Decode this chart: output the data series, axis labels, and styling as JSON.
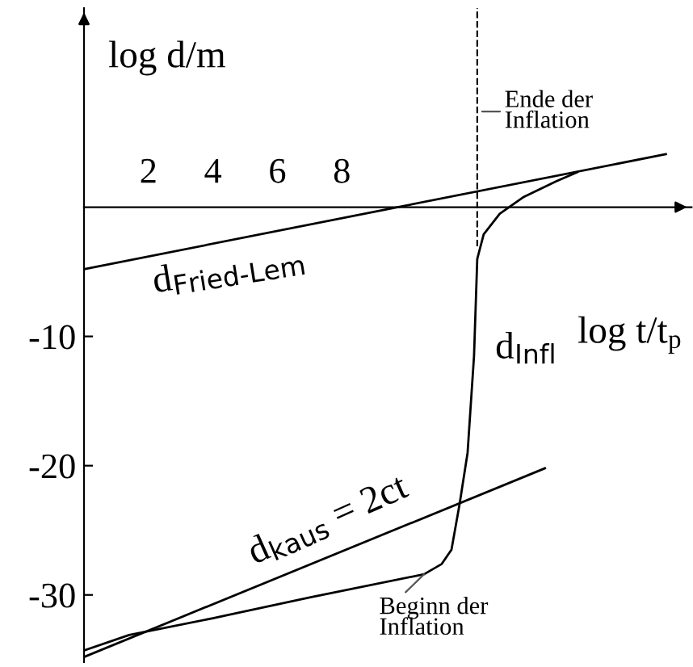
{
  "chart_data": {
    "type": "line",
    "xlabel": "log t/t$_{p}$",
    "ylabel": "log d/m",
    "xlim": [
      0,
      18.85
    ],
    "ylim": [
      -35.2,
      15.4
    ],
    "xticks": [
      2,
      4,
      6,
      8
    ],
    "yticks": [
      {
        "value": -10,
        "label": "-10"
      },
      {
        "value": -20,
        "label": "-20"
      },
      {
        "value": -30,
        "label": "-30"
      }
    ],
    "grid": false,
    "line_style": "solid",
    "marker": "none",
    "series": [
      {
        "name": "d$_{Fried-Lem}$",
        "color": "#000000",
        "x": [
          0,
          18.05
        ],
        "values": [
          -4.8,
          4.1
        ]
      },
      {
        "name": "d$_{Infl}$",
        "color": "#000000",
        "x": [
          0,
          1.4,
          4,
          7,
          10.55,
          11.1,
          11.4,
          11.65,
          11.9,
          12.1,
          12.2,
          12.4,
          12.9,
          13.65,
          14.65,
          15.3
        ],
        "values": [
          -34.3,
          -33.1,
          -31.8,
          -30.2,
          -28.4,
          -27.6,
          -26.5,
          -23,
          -19,
          -11.5,
          -4,
          -2.1,
          -0.5,
          0.8,
          2,
          2.7
        ]
      },
      {
        "name": "d$_{kaus}$ = 2ct",
        "color": "#000000",
        "x": [
          0,
          14.3
        ],
        "values": [
          -34.8,
          -20.2
        ]
      }
    ],
    "ref_lines": [
      {
        "axis": "x",
        "value": 12.2,
        "line_style": "dashed",
        "color": "#000000"
      }
    ],
    "annotations": [
      {
        "text": "Ende der\nInflation",
        "x": 12.35,
        "y": 7.4
      },
      {
        "text": "Beginn der\nInflation",
        "x": 10.55,
        "y": -28.4
      }
    ]
  }
}
